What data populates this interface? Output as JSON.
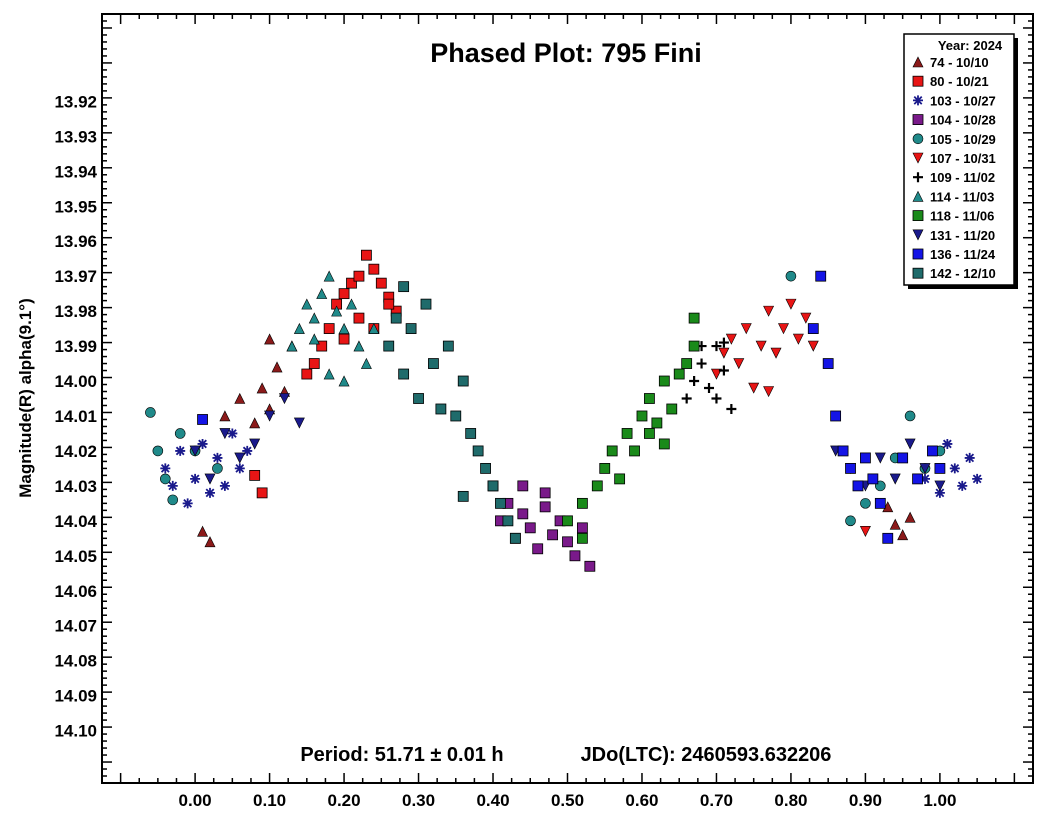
{
  "chart_data": {
    "type": "scatter",
    "title": "Phased Plot: 795 Fini",
    "ylabel": "Magnitude(R) alpha(9.1°)",
    "xlabel": "",
    "xlim": [
      -0.125,
      1.125
    ],
    "ylim": [
      14.115,
      13.895
    ],
    "y_inverted": true,
    "x_ticks": [
      "0.00",
      "0.10",
      "0.20",
      "0.30",
      "0.40",
      "0.50",
      "0.60",
      "0.70",
      "0.80",
      "0.90",
      "1.00"
    ],
    "y_ticks": [
      "13.92",
      "13.93",
      "13.94",
      "13.95",
      "13.96",
      "13.97",
      "13.98",
      "13.99",
      "14.00",
      "14.01",
      "14.02",
      "14.03",
      "14.04",
      "14.05",
      "14.06",
      "14.07",
      "14.08",
      "14.09",
      "14.10"
    ],
    "annotation_period": "Period: 51.71 ± 0.01 h",
    "annotation_epoch": "JDo(LTC): 2460593.632206",
    "legend_title": "Year: 2024",
    "legend_placement": "top-right",
    "series": [
      {
        "name": "74 - 10/10",
        "marker": "triangle-up",
        "color": "#8b1a1a",
        "points": [
          [
            0.04,
            14.01
          ],
          [
            0.06,
            14.005
          ],
          [
            0.08,
            14.012
          ],
          [
            0.09,
            14.002
          ],
          [
            0.1,
            14.008
          ],
          [
            0.11,
            13.996
          ],
          [
            0.12,
            14.003
          ],
          [
            0.13,
            13.99
          ],
          [
            0.1,
            13.988
          ],
          [
            0.01,
            14.043
          ],
          [
            0.02,
            14.046
          ],
          [
            0.94,
            14.041
          ],
          [
            0.95,
            14.044
          ],
          [
            0.96,
            14.039
          ],
          [
            0.93,
            14.036
          ]
        ]
      },
      {
        "name": "80 - 10/21",
        "marker": "square",
        "color": "#e81515",
        "points": [
          [
            0.08,
            14.027
          ],
          [
            0.09,
            14.032
          ],
          [
            0.15,
            13.998
          ],
          [
            0.16,
            13.995
          ],
          [
            0.17,
            13.99
          ],
          [
            0.18,
            13.985
          ],
          [
            0.19,
            13.978
          ],
          [
            0.2,
            13.975
          ],
          [
            0.21,
            13.972
          ],
          [
            0.22,
            13.97
          ],
          [
            0.23,
            13.964
          ],
          [
            0.24,
            13.968
          ],
          [
            0.25,
            13.972
          ],
          [
            0.26,
            13.976
          ],
          [
            0.27,
            13.98
          ],
          [
            0.2,
            13.988
          ],
          [
            0.22,
            13.982
          ],
          [
            0.24,
            13.985
          ],
          [
            0.26,
            13.978
          ]
        ]
      },
      {
        "name": "103 - 10/27",
        "marker": "asterisk",
        "color": "#1a1a8c",
        "points": [
          [
            -0.04,
            14.025
          ],
          [
            -0.03,
            14.03
          ],
          [
            -0.02,
            14.02
          ],
          [
            -0.01,
            14.035
          ],
          [
            0.0,
            14.028
          ],
          [
            0.01,
            14.018
          ],
          [
            0.02,
            14.032
          ],
          [
            0.03,
            14.022
          ],
          [
            0.04,
            14.03
          ],
          [
            0.05,
            14.015
          ],
          [
            0.06,
            14.025
          ],
          [
            0.07,
            14.02
          ],
          [
            0.98,
            14.028
          ],
          [
            0.99,
            14.02
          ],
          [
            1.0,
            14.032
          ],
          [
            1.01,
            14.018
          ],
          [
            1.02,
            14.025
          ],
          [
            1.03,
            14.03
          ],
          [
            1.04,
            14.022
          ],
          [
            1.05,
            14.028
          ]
        ]
      },
      {
        "name": "104 - 10/28",
        "marker": "square",
        "color": "#7a1a8a",
        "points": [
          [
            0.4,
            14.03
          ],
          [
            0.41,
            14.04
          ],
          [
            0.42,
            14.035
          ],
          [
            0.43,
            14.045
          ],
          [
            0.44,
            14.038
          ],
          [
            0.45,
            14.042
          ],
          [
            0.46,
            14.048
          ],
          [
            0.47,
            14.036
          ],
          [
            0.48,
            14.044
          ],
          [
            0.49,
            14.04
          ],
          [
            0.5,
            14.046
          ],
          [
            0.51,
            14.05
          ],
          [
            0.52,
            14.042
          ],
          [
            0.53,
            14.053
          ],
          [
            0.44,
            14.03
          ],
          [
            0.47,
            14.032
          ]
        ]
      },
      {
        "name": "105 - 10/29",
        "marker": "circle",
        "color": "#208a8a",
        "points": [
          [
            -0.05,
            14.02
          ],
          [
            -0.04,
            14.028
          ],
          [
            -0.03,
            14.034
          ],
          [
            -0.02,
            14.015
          ],
          [
            -0.06,
            14.009
          ],
          [
            0.0,
            14.02
          ],
          [
            0.03,
            14.025
          ],
          [
            0.9,
            14.035
          ],
          [
            0.92,
            14.03
          ],
          [
            0.94,
            14.022
          ],
          [
            0.96,
            14.01
          ],
          [
            0.98,
            14.025
          ],
          [
            1.0,
            14.02
          ],
          [
            0.8,
            13.97
          ],
          [
            0.88,
            14.04
          ]
        ]
      },
      {
        "name": "107 - 10/31",
        "marker": "triangle-down",
        "color": "#e81515",
        "points": [
          [
            0.7,
            13.998
          ],
          [
            0.71,
            13.992
          ],
          [
            0.72,
            13.988
          ],
          [
            0.73,
            13.995
          ],
          [
            0.74,
            13.985
          ],
          [
            0.75,
            14.002
          ],
          [
            0.76,
            13.99
          ],
          [
            0.77,
            13.98
          ],
          [
            0.78,
            13.992
          ],
          [
            0.79,
            13.985
          ],
          [
            0.8,
            13.978
          ],
          [
            0.81,
            13.988
          ],
          [
            0.82,
            13.982
          ],
          [
            0.83,
            13.99
          ],
          [
            0.9,
            14.043
          ],
          [
            0.77,
            14.003
          ]
        ]
      },
      {
        "name": "109 - 11/02",
        "marker": "plus",
        "color": "#000000",
        "points": [
          [
            0.66,
            14.005
          ],
          [
            0.67,
            14.0
          ],
          [
            0.68,
            13.995
          ],
          [
            0.69,
            14.002
          ],
          [
            0.7,
            13.99
          ],
          [
            0.71,
            13.997
          ],
          [
            0.72,
            14.008
          ],
          [
            0.68,
            13.99
          ],
          [
            0.7,
            14.005
          ],
          [
            0.71,
            13.989
          ]
        ]
      },
      {
        "name": "114 - 11/03",
        "marker": "triangle-up",
        "color": "#208a8a",
        "points": [
          [
            0.13,
            13.99
          ],
          [
            0.14,
            13.985
          ],
          [
            0.15,
            13.978
          ],
          [
            0.16,
            13.982
          ],
          [
            0.17,
            13.975
          ],
          [
            0.18,
            13.97
          ],
          [
            0.19,
            13.98
          ],
          [
            0.2,
            13.985
          ],
          [
            0.21,
            13.978
          ],
          [
            0.22,
            13.99
          ],
          [
            0.23,
            13.995
          ],
          [
            0.18,
            13.998
          ],
          [
            0.2,
            14.0
          ],
          [
            0.16,
            13.988
          ],
          [
            0.24,
            13.985
          ]
        ]
      },
      {
        "name": "118 - 11/06",
        "marker": "square",
        "color": "#1a8a1a",
        "points": [
          [
            0.5,
            14.04
          ],
          [
            0.52,
            14.035
          ],
          [
            0.54,
            14.03
          ],
          [
            0.55,
            14.025
          ],
          [
            0.56,
            14.02
          ],
          [
            0.57,
            14.028
          ],
          [
            0.58,
            14.015
          ],
          [
            0.59,
            14.02
          ],
          [
            0.6,
            14.01
          ],
          [
            0.61,
            14.005
          ],
          [
            0.62,
            14.012
          ],
          [
            0.63,
            14.0
          ],
          [
            0.64,
            14.008
          ],
          [
            0.65,
            13.998
          ],
          [
            0.66,
            13.995
          ],
          [
            0.67,
            13.99
          ],
          [
            0.61,
            14.015
          ],
          [
            0.63,
            14.018
          ],
          [
            0.67,
            13.982
          ],
          [
            0.52,
            14.045
          ]
        ]
      },
      {
        "name": "131 - 11/20",
        "marker": "triangle-down",
        "color": "#1a1a8c",
        "points": [
          [
            0.0,
            14.02
          ],
          [
            0.02,
            14.028
          ],
          [
            0.04,
            14.015
          ],
          [
            0.06,
            14.022
          ],
          [
            0.08,
            14.018
          ],
          [
            0.1,
            14.01
          ],
          [
            0.12,
            14.005
          ],
          [
            0.14,
            14.012
          ],
          [
            0.86,
            14.02
          ],
          [
            0.88,
            14.025
          ],
          [
            0.9,
            14.03
          ],
          [
            0.92,
            14.022
          ],
          [
            0.94,
            14.028
          ],
          [
            0.96,
            14.018
          ],
          [
            0.98,
            14.025
          ],
          [
            1.0,
            14.03
          ]
        ]
      },
      {
        "name": "136 - 11/24",
        "marker": "square",
        "color": "#1414e6",
        "points": [
          [
            0.01,
            14.011
          ],
          [
            0.83,
            13.985
          ],
          [
            0.84,
            13.97
          ],
          [
            0.85,
            13.995
          ],
          [
            0.86,
            14.01
          ],
          [
            0.87,
            14.02
          ],
          [
            0.88,
            14.025
          ],
          [
            0.89,
            14.03
          ],
          [
            0.9,
            14.022
          ],
          [
            0.91,
            14.028
          ],
          [
            0.92,
            14.035
          ],
          [
            0.93,
            14.045
          ],
          [
            0.95,
            14.022
          ],
          [
            0.97,
            14.028
          ],
          [
            0.99,
            14.02
          ],
          [
            1.0,
            14.025
          ]
        ]
      },
      {
        "name": "142 - 12/10",
        "marker": "square",
        "color": "#1f6b6b",
        "points": [
          [
            0.26,
            13.99
          ],
          [
            0.27,
            13.982
          ],
          [
            0.28,
            13.998
          ],
          [
            0.29,
            13.985
          ],
          [
            0.3,
            14.005
          ],
          [
            0.31,
            13.978
          ],
          [
            0.32,
            13.995
          ],
          [
            0.33,
            14.008
          ],
          [
            0.34,
            13.99
          ],
          [
            0.35,
            14.01
          ],
          [
            0.36,
            14.0
          ],
          [
            0.37,
            14.015
          ],
          [
            0.38,
            14.02
          ],
          [
            0.39,
            14.025
          ],
          [
            0.4,
            14.03
          ],
          [
            0.41,
            14.035
          ],
          [
            0.42,
            14.04
          ],
          [
            0.43,
            14.045
          ],
          [
            0.36,
            14.033
          ],
          [
            0.28,
            13.973
          ]
        ]
      }
    ]
  }
}
